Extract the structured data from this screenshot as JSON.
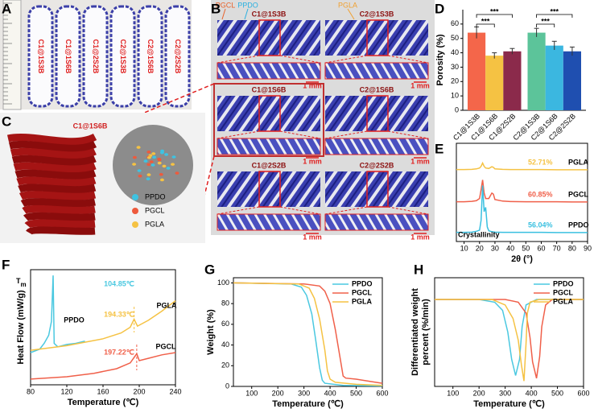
{
  "panel_labels": [
    "A",
    "B",
    "C",
    "D",
    "E",
    "F",
    "G",
    "H"
  ],
  "panel_a": {
    "samples": [
      "C1@1S3B",
      "C1@1S6B",
      "C1@2S2B",
      "C2@1S3B",
      "C2@1S6B",
      "C2@2S2B"
    ]
  },
  "panel_b": {
    "legend": [
      {
        "name": "PGCL",
        "color": "#e8622a"
      },
      {
        "name": "PPDO",
        "color": "#2ab0e0"
      },
      {
        "name": "PGLA",
        "color": "#f0a030"
      }
    ],
    "samples": [
      "C1@1S3B",
      "C2@1S3B",
      "C1@1S6B",
      "C2@1S6B",
      "C1@2S2B",
      "C2@2S2B"
    ],
    "scale_bar": "1 mm"
  },
  "panel_c": {
    "title": "C1@1S6B",
    "legend": [
      {
        "name": "PPDO",
        "color": "#3ec3e2"
      },
      {
        "name": "PGCL",
        "color": "#ee5a3c"
      },
      {
        "name": "PGLA",
        "color": "#f5c243"
      }
    ]
  },
  "chart_data": [
    {
      "type": "bar",
      "ylabel": "Porosity (%)",
      "categories": [
        "C1@1S3B",
        "C1@1S6B",
        "C1@2S2B",
        "C2@1S3B",
        "C2@1S6B",
        "C2@2S2B"
      ],
      "values": [
        54,
        38,
        41,
        54,
        45,
        41
      ],
      "errors": [
        4,
        2,
        2,
        3,
        3,
        3
      ],
      "colors": [
        "#f4664a",
        "#f5c243",
        "#8b2a4b",
        "#5cc49a",
        "#3bb7e0",
        "#1f4fb0"
      ],
      "ylim": [
        0,
        70
      ],
      "yticks": [
        0,
        10,
        20,
        30,
        40,
        50,
        60
      ],
      "annotations": [
        "***",
        "***",
        "***",
        "***"
      ]
    },
    {
      "type": "xrd",
      "xlabel": "2θ (°)",
      "annotation": "Crystallinity",
      "xlim": [
        5,
        90
      ],
      "xticks": [
        10,
        20,
        30,
        40,
        50,
        60,
        70,
        80,
        90
      ],
      "ylim": [
        0,
        4.5
      ],
      "series": [
        {
          "name": "PGLA",
          "color": "#f5c243",
          "label": "52.71%",
          "x": [
            5,
            10,
            15,
            18,
            20,
            21,
            22,
            23,
            24,
            26,
            28,
            29,
            30,
            35,
            40,
            50,
            60,
            70,
            80,
            90
          ],
          "values": [
            0.05,
            0.05,
            0.06,
            0.08,
            0.12,
            0.2,
            0.35,
            0.2,
            0.12,
            0.1,
            0.18,
            0.15,
            0.08,
            0.06,
            0.05,
            0.05,
            0.05,
            0.04,
            0.04,
            0.04
          ]
        },
        {
          "name": "PGCL",
          "color": "#f0604a",
          "label": "60.85%",
          "x": [
            5,
            10,
            15,
            18,
            20,
            21,
            22,
            23,
            24,
            26,
            28,
            29,
            30,
            35,
            40,
            50,
            60,
            70,
            80,
            90
          ],
          "values": [
            0.05,
            0.05,
            0.07,
            0.1,
            0.2,
            0.6,
            1.05,
            0.45,
            0.2,
            0.2,
            0.45,
            0.4,
            0.15,
            0.08,
            0.06,
            0.05,
            0.05,
            0.05,
            0.04,
            0.04
          ]
        },
        {
          "name": "PPDO",
          "color": "#3ac0e0",
          "label": "56.04%",
          "x": [
            5,
            10,
            15,
            18,
            20,
            21,
            22,
            23,
            24,
            25,
            26,
            28,
            30,
            35,
            40,
            50,
            60,
            70,
            80,
            90
          ],
          "values": [
            0.05,
            0.05,
            0.06,
            0.1,
            0.15,
            0.6,
            2.2,
            1.0,
            1.2,
            0.3,
            0.12,
            0.08,
            0.06,
            0.05,
            0.05,
            0.05,
            0.05,
            0.04,
            0.04,
            0.04
          ]
        }
      ]
    },
    {
      "type": "dsc",
      "ylabel": "Heat Flow (mW/g)",
      "xlabel": "Temperature (℃)",
      "tm_label": "T",
      "tm_sub": "m",
      "xlim": [
        80,
        240
      ],
      "xticks": [
        80,
        120,
        160,
        200,
        240
      ],
      "ylim": [
        0,
        10
      ],
      "series": [
        {
          "name": "PPDO",
          "color": "#4ac8e0",
          "peak": 104.85,
          "peak_label": "104.85℃",
          "x": [
            80,
            90,
            95,
            100,
            103,
            104.85,
            106,
            110,
            120,
            130,
            140
          ],
          "values": [
            2.8,
            3.1,
            3.6,
            4.3,
            5.5,
            9.5,
            3.6,
            3.3,
            3.5,
            3.6,
            3.8
          ]
        },
        {
          "name": "PGLA",
          "color": "#f5c243",
          "peak": 194.33,
          "peak_label": "194.33℃",
          "x": [
            80,
            120,
            160,
            180,
            190,
            194.33,
            198,
            210,
            225,
            240
          ],
          "values": [
            3.0,
            3.4,
            4.0,
            4.5,
            5.0,
            5.7,
            5.1,
            5.6,
            6.4,
            7.3
          ]
        },
        {
          "name": "PGCL",
          "color": "#f0604a",
          "peak": 197.22,
          "peak_label": "197.22℃",
          "x": [
            80,
            120,
            150,
            175,
            190,
            197.22,
            200,
            210,
            225,
            240
          ],
          "values": [
            0.5,
            0.7,
            1.0,
            1.4,
            1.9,
            2.7,
            2.1,
            2.3,
            2.6,
            2.8
          ]
        }
      ]
    },
    {
      "type": "line",
      "ylabel": "Weight (%)",
      "xlabel": "Temperature (℃)",
      "xlim": [
        30,
        600
      ],
      "xticks": [
        100,
        200,
        300,
        400,
        500,
        600
      ],
      "ylim": [
        0,
        105
      ],
      "yticks": [
        0,
        20,
        40,
        60,
        80,
        100
      ],
      "series": [
        {
          "name": "PPDO",
          "color": "#4ac8e0",
          "x": [
            30,
            250,
            290,
            310,
            330,
            345,
            360,
            370,
            380,
            450,
            600
          ],
          "values": [
            100,
            99,
            96,
            88,
            70,
            45,
            18,
            6,
            3,
            1,
            0.5
          ]
        },
        {
          "name": "PGCL",
          "color": "#f0604a",
          "x": [
            30,
            300,
            360,
            380,
            400,
            420,
            440,
            450,
            460,
            500,
            550,
            600
          ],
          "values": [
            100,
            99,
            97,
            92,
            80,
            55,
            25,
            10,
            8,
            7,
            5,
            3
          ]
        },
        {
          "name": "PGLA",
          "color": "#f5c243",
          "x": [
            30,
            280,
            320,
            340,
            360,
            380,
            390,
            400,
            420,
            500,
            600
          ],
          "values": [
            100,
            99,
            95,
            85,
            65,
            35,
            15,
            7,
            4,
            2,
            1
          ]
        }
      ]
    },
    {
      "type": "line",
      "ylabel": [
        "Differentiated weight",
        "percent (%/min)"
      ],
      "xlabel": "Temperature (℃)",
      "xlim": [
        30,
        600
      ],
      "xticks": [
        100,
        200,
        300,
        400,
        500,
        600
      ],
      "ylim": [
        -3.2,
        0.8
      ],
      "series": [
        {
          "name": "PPDO",
          "color": "#4ac8e0",
          "x": [
            30,
            200,
            260,
            290,
            310,
            325,
            340,
            355,
            365,
            380,
            420,
            600
          ],
          "values": [
            0,
            0,
            -0.1,
            -0.4,
            -1.2,
            -2.2,
            -2.8,
            -2.2,
            -1.0,
            -0.2,
            0,
            0
          ]
        },
        {
          "name": "PGCL",
          "color": "#f0604a",
          "x": [
            30,
            300,
            350,
            380,
            395,
            405,
            420,
            432,
            440,
            455,
            480,
            600
          ],
          "values": [
            0,
            0,
            -0.1,
            -0.5,
            -1.4,
            -2.3,
            -2.9,
            -2.1,
            -1.0,
            -0.2,
            0,
            0
          ]
        },
        {
          "name": "PGLA",
          "color": "#f5c243",
          "x": [
            30,
            250,
            300,
            330,
            350,
            362,
            372,
            380,
            385,
            395,
            430,
            600
          ],
          "values": [
            0,
            0,
            -0.2,
            -0.7,
            -1.5,
            -2.4,
            -3.0,
            -1.6,
            -0.5,
            -0.1,
            0,
            0
          ]
        }
      ]
    }
  ]
}
